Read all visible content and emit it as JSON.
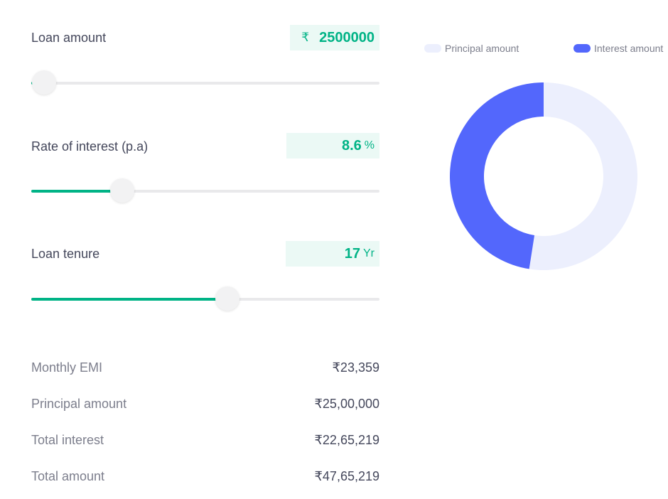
{
  "inputs": {
    "loan_amount": {
      "label": "Loan amount",
      "prefix": "₹",
      "value": "2500000",
      "slider_fraction": 0.02
    },
    "rate": {
      "label": "Rate of interest (p.a)",
      "value": "8.6",
      "unit": "%",
      "slider_fraction": 0.244
    },
    "tenure": {
      "label": "Loan tenure",
      "value": "17",
      "unit": "Yr",
      "slider_fraction": 0.546
    }
  },
  "summary": [
    {
      "label": "Monthly EMI",
      "value": "₹23,359"
    },
    {
      "label": "Principal amount",
      "value": "₹25,00,000"
    },
    {
      "label": "Total interest",
      "value": "₹22,65,219"
    },
    {
      "label": "Total amount",
      "value": "₹47,65,219"
    }
  ],
  "colors": {
    "accent_green": "#00b386",
    "principal": "#eceffd",
    "interest": "#5367fc"
  },
  "chart_data": {
    "type": "pie",
    "donut": true,
    "legend_placement": "top",
    "series": [
      {
        "name": "Principal amount",
        "value": 2500000,
        "color": "#eceffd"
      },
      {
        "name": "Interest amount",
        "value": 2265219,
        "color": "#5367fc"
      }
    ]
  }
}
